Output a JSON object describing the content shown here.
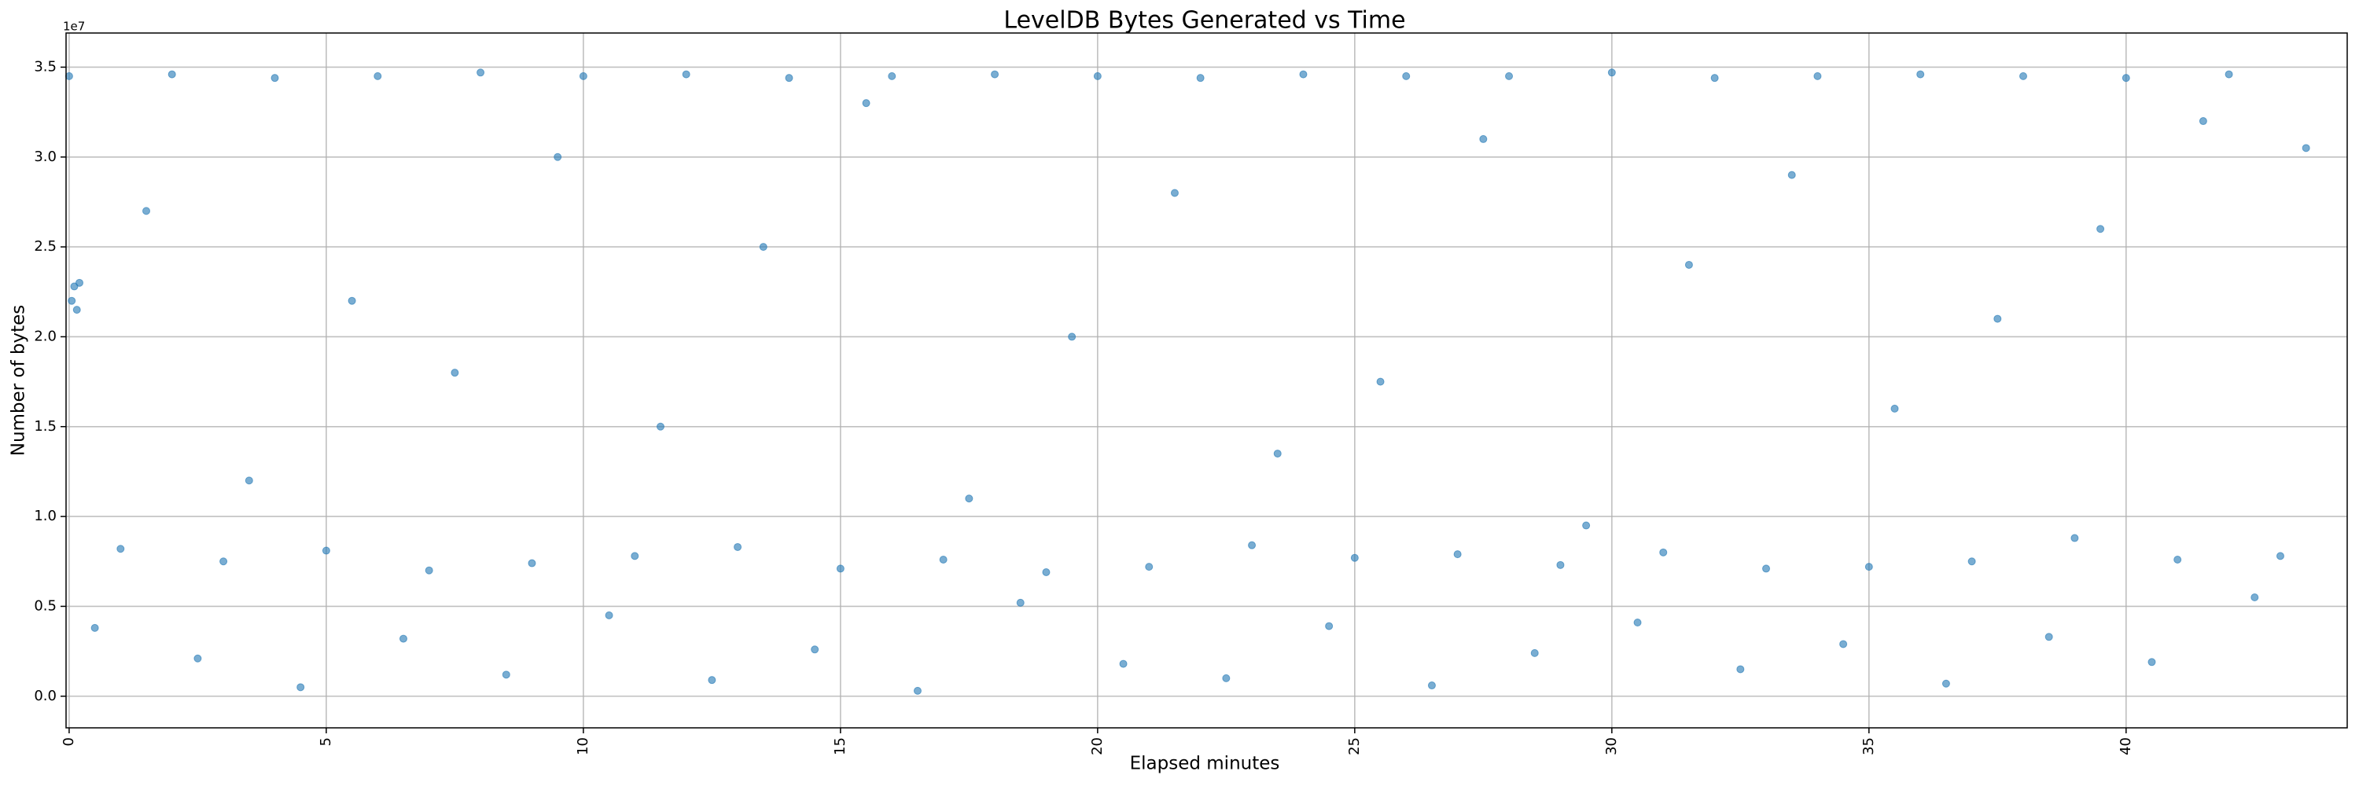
{
  "chart_data": {
    "type": "scatter",
    "title": "LevelDB Bytes Generated vs Time",
    "x_label": "Elapsed minutes",
    "y_label": "Number of bytes",
    "y_offset_label": "1e7",
    "color": "#1f77b4",
    "grid": true,
    "xlim": [
      -0.06,
      44.3
    ],
    "ylim": [
      -1760000,
      36900000
    ],
    "xticks": [
      0,
      5,
      10,
      15,
      20,
      25,
      30,
      35,
      40
    ],
    "yticks": [
      {
        "value": 0,
        "label": "0.0"
      },
      {
        "value": 5000000,
        "label": "0.5"
      },
      {
        "value": 10000000,
        "label": "1.0"
      },
      {
        "value": 15000000,
        "label": "1.5"
      },
      {
        "value": 20000000,
        "label": "2.0"
      },
      {
        "value": 25000000,
        "label": "2.5"
      },
      {
        "value": 30000000,
        "label": "3.0"
      },
      {
        "value": 35000000,
        "label": "3.5"
      }
    ],
    "x": [
      0,
      2,
      4,
      6,
      8,
      10,
      12,
      14,
      16,
      18,
      20,
      22,
      24,
      26,
      28,
      30,
      32,
      34,
      36,
      38,
      40,
      42,
      1,
      3,
      5,
      7,
      9,
      11,
      13,
      15,
      17,
      19,
      21,
      23,
      25,
      27,
      29,
      31,
      33,
      35,
      37,
      39,
      41,
      43,
      0.5,
      2.5,
      4.5,
      6.5,
      8.5,
      10.5,
      12.5,
      14.5,
      16.5,
      18.5,
      20.5,
      22.5,
      24.5,
      26.5,
      28.5,
      30.5,
      32.5,
      34.5,
      36.5,
      38.5,
      40.5,
      42.5,
      1.5,
      3.5,
      5.5,
      7.5,
      9.5,
      11.5,
      13.5,
      15.5,
      17.5,
      19.5,
      21.5,
      23.5,
      25.5,
      27.5,
      29.5,
      31.5,
      33.5,
      35.5,
      37.5,
      39.5,
      41.5,
      43.5,
      0.05,
      0.1,
      0.15,
      0.2
    ],
    "values": [
      34500000,
      34600000,
      34400000,
      34500000,
      34700000,
      34500000,
      34600000,
      34400000,
      34500000,
      34600000,
      34500000,
      34400000,
      34600000,
      34500000,
      34500000,
      34700000,
      34400000,
      34500000,
      34600000,
      34500000,
      34400000,
      34600000,
      8200000,
      7500000,
      8100000,
      7000000,
      7400000,
      7800000,
      8300000,
      7100000,
      7600000,
      6900000,
      7200000,
      8400000,
      7700000,
      7900000,
      7300000,
      8000000,
      7100000,
      7200000,
      7500000,
      8800000,
      7600000,
      7800000,
      3800000,
      2100000,
      500000,
      3200000,
      1200000,
      4500000,
      900000,
      2600000,
      300000,
      5200000,
      1800000,
      1000000,
      3900000,
      600000,
      2400000,
      4100000,
      1500000,
      2900000,
      700000,
      3300000,
      1900000,
      5500000,
      27000000,
      12000000,
      22000000,
      18000000,
      30000000,
      15000000,
      25000000,
      33000000,
      11000000,
      20000000,
      28000000,
      13500000,
      17500000,
      31000000,
      9500000,
      24000000,
      29000000,
      16000000,
      21000000,
      26000000,
      32000000,
      30500000,
      22000000,
      22800000,
      21500000,
      23000000
    ]
  }
}
